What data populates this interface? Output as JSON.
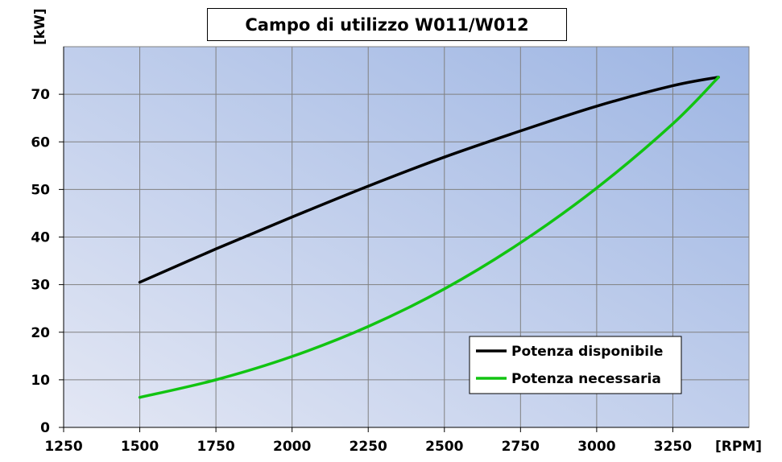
{
  "chart_data": {
    "type": "line",
    "title": "Campo di utilizzo W011/W012",
    "ylabel": "[kW]",
    "xlabel": "[RPM]",
    "xlim": [
      1250,
      3500
    ],
    "ylim": [
      0,
      80
    ],
    "x_ticks": [
      1250,
      1500,
      1750,
      2000,
      2250,
      2500,
      2750,
      3000,
      3250
    ],
    "y_ticks": [
      0,
      10,
      20,
      30,
      40,
      50,
      60,
      70
    ],
    "grid": true,
    "legend_position": "bottom-right",
    "background_gradient": [
      "#e3e7f4",
      "#9db5e3"
    ],
    "series": [
      {
        "name": "Potenza disponibile",
        "color": "#000000",
        "points": [
          [
            1500,
            30.5
          ],
          [
            1750,
            37.5
          ],
          [
            2000,
            44.2
          ],
          [
            2250,
            50.7
          ],
          [
            2500,
            56.8
          ],
          [
            2750,
            62.3
          ],
          [
            3000,
            67.5
          ],
          [
            3250,
            71.8
          ],
          [
            3400,
            73.6
          ]
        ]
      },
      {
        "name": "Potenza necessaria",
        "color": "#11c411",
        "points": [
          [
            1500,
            6.3
          ],
          [
            1750,
            10.0
          ],
          [
            2000,
            14.9
          ],
          [
            2250,
            21.2
          ],
          [
            2500,
            29.1
          ],
          [
            2750,
            38.8
          ],
          [
            3000,
            50.3
          ],
          [
            3250,
            63.8
          ],
          [
            3400,
            73.6
          ]
        ]
      }
    ]
  }
}
